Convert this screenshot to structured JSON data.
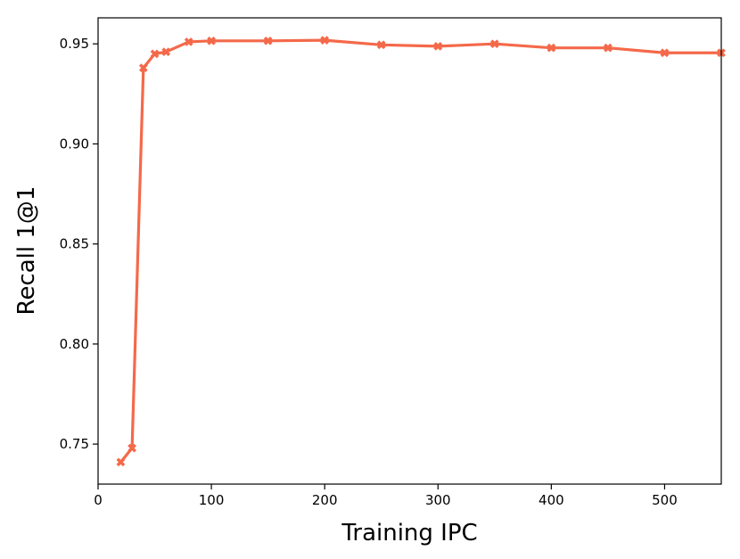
{
  "chart_data": {
    "type": "line",
    "xlabel": "Training IPC",
    "ylabel": "Recall 1@1",
    "xlim": [
      0,
      550
    ],
    "ylim": [
      0.73,
      0.963
    ],
    "xticks": [
      0,
      100,
      200,
      300,
      400,
      500
    ],
    "yticks": [
      0.75,
      0.8,
      0.85,
      0.9,
      0.95
    ],
    "xtick_labels": [
      "0",
      "100",
      "200",
      "300",
      "400",
      "500"
    ],
    "ytick_labels": [
      "0.75",
      "0.80",
      "0.85",
      "0.90",
      "0.95"
    ],
    "grid": false,
    "series": [
      {
        "color": "#f4694a",
        "marker": "X",
        "x": [
          20,
          30,
          40,
          50,
          60,
          80,
          100,
          150,
          200,
          250,
          300,
          350,
          400,
          450,
          500,
          550
        ],
        "y": [
          0.741,
          0.748,
          0.938,
          0.945,
          0.946,
          0.951,
          0.9515,
          0.9515,
          0.9518,
          0.9495,
          0.9488,
          0.95,
          0.948,
          0.948,
          0.9455,
          0.9455
        ]
      }
    ]
  }
}
